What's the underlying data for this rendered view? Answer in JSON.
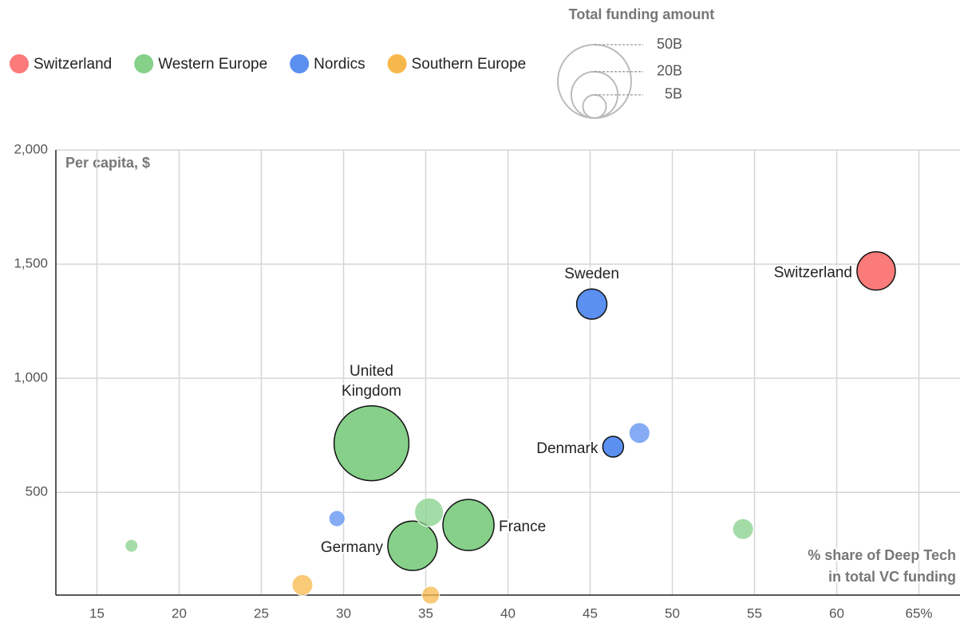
{
  "chart_data": {
    "type": "bubble",
    "ylabel": "Per capita, $",
    "xlabel": [
      "% share of Deep Tech",
      "in total VC funding"
    ],
    "xlim": [
      12.5,
      67.5
    ],
    "xticks": [
      15,
      20,
      25,
      30,
      35,
      40,
      45,
      50,
      55,
      60,
      {
        "value": 65,
        "label": "65%"
      }
    ],
    "ylim": [
      50,
      2000
    ],
    "yticks": [
      500,
      {
        "value": 1000,
        "label": "1,000"
      },
      {
        "value": 1500,
        "label": "1,500"
      },
      {
        "value": 2000,
        "label": "2,000"
      }
    ],
    "grid": true,
    "size_legend": {
      "title": "Total funding amount",
      "sizes": [
        50,
        20,
        5
      ],
      "labels": [
        "50B",
        "20B",
        "5B"
      ]
    },
    "series": [
      {
        "name": "Switzerland",
        "color": "#fb7a7a",
        "x": [
          62.4
        ],
        "values": [
          1470
        ],
        "sizes": [
          13.6
        ],
        "labels": [
          [
            "Switzerland"
          ]
        ]
      },
      {
        "name": "Western Europe",
        "color": "#86d08a",
        "x": [
          31.7,
          34.2,
          37.6,
          35.2,
          54.3,
          17.1
        ],
        "values": [
          715,
          266,
          357,
          413,
          339,
          266
        ],
        "sizes": [
          52,
          22.7,
          24.2,
          7.7,
          4,
          1.5
        ],
        "labels": [
          [
            "United",
            "Kingdom"
          ],
          [
            "Germany"
          ],
          [
            "France"
          ],
          null,
          null,
          null
        ]
      },
      {
        "name": "Nordics",
        "color": "#5b8ff0",
        "x": [
          45.1,
          46.4,
          48.0,
          29.6
        ],
        "values": [
          1325,
          700,
          760,
          385
        ],
        "sizes": [
          8.5,
          4,
          4,
          2.4
        ],
        "labels": [
          [
            "Sweden"
          ],
          [
            "Denmark"
          ],
          null,
          null
        ]
      },
      {
        "name": "Southern Europe",
        "color": "#f7b84b",
        "x": [
          27.5,
          35.3
        ],
        "values": [
          94,
          50
        ],
        "sizes": [
          4,
          2.9
        ],
        "labels": [
          null,
          null
        ]
      }
    ]
  }
}
